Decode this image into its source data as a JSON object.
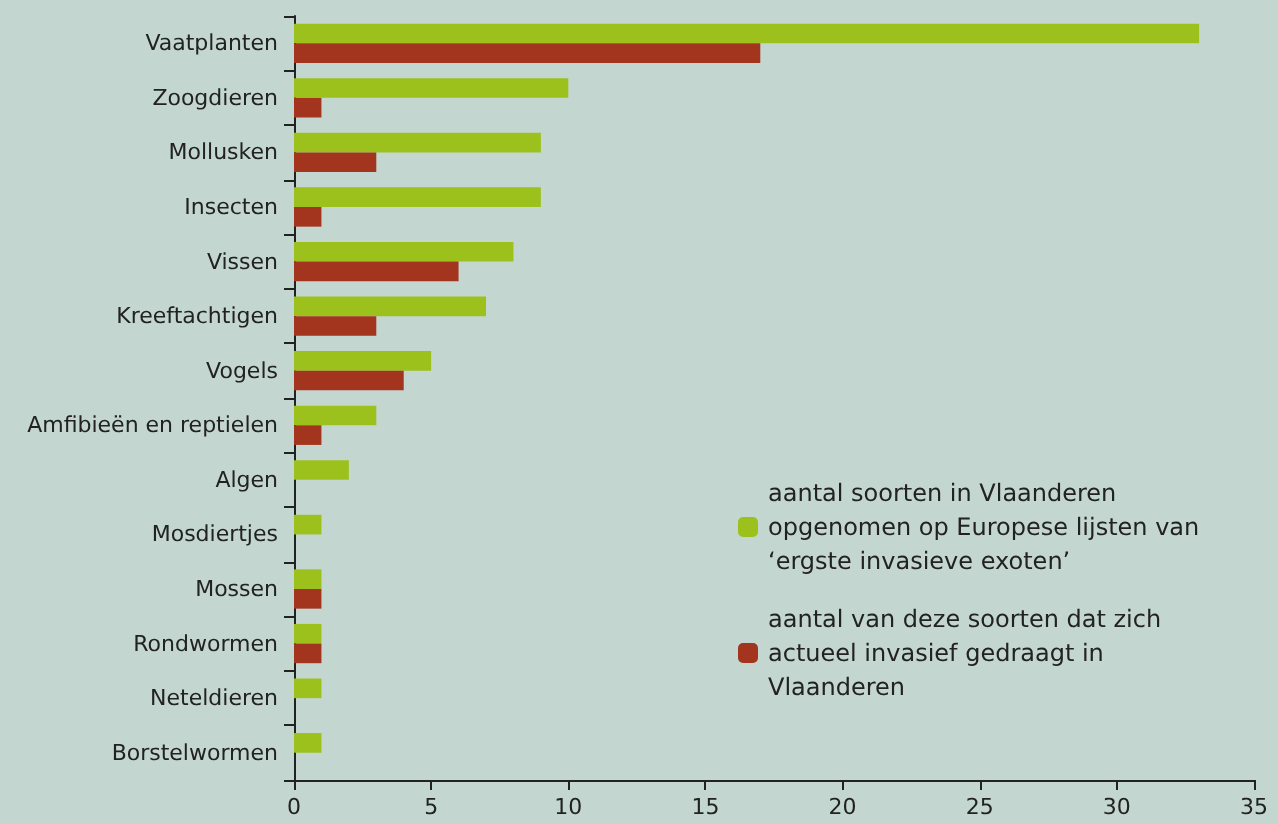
{
  "chart_data": {
    "type": "bar",
    "orientation": "horizontal",
    "categories": [
      "Vaatplanten",
      "Zoogdieren",
      "Mollusken",
      "Insecten",
      "Vissen",
      "Kreeftachtigen",
      "Vogels",
      "Amfibieën en reptielen",
      "Algen",
      "Mosdiertjes",
      "Mossen",
      "Rondwormen",
      "Neteldieren",
      "Borstelwormen"
    ],
    "series": [
      {
        "name": "aantal soorten in Vlaanderen opgenomen op Europese lijsten van ‘ergste invasieve exoten’",
        "color": "#9cc11c",
        "values": [
          33,
          10,
          9,
          9,
          8,
          7,
          5,
          3,
          2,
          1,
          1,
          1,
          1,
          1
        ]
      },
      {
        "name": "aantal van deze soorten dat zich actueel invasief gedraagt in Vlaanderen",
        "color": "#a3351f",
        "values": [
          17,
          1,
          3,
          1,
          6,
          3,
          4,
          1,
          null,
          null,
          1,
          1,
          null,
          null
        ]
      }
    ],
    "xlim": [
      0,
      35
    ],
    "xticks": [
      0,
      5,
      10,
      15,
      20,
      25,
      30,
      35
    ],
    "grid": false,
    "legend": "bottom right"
  }
}
